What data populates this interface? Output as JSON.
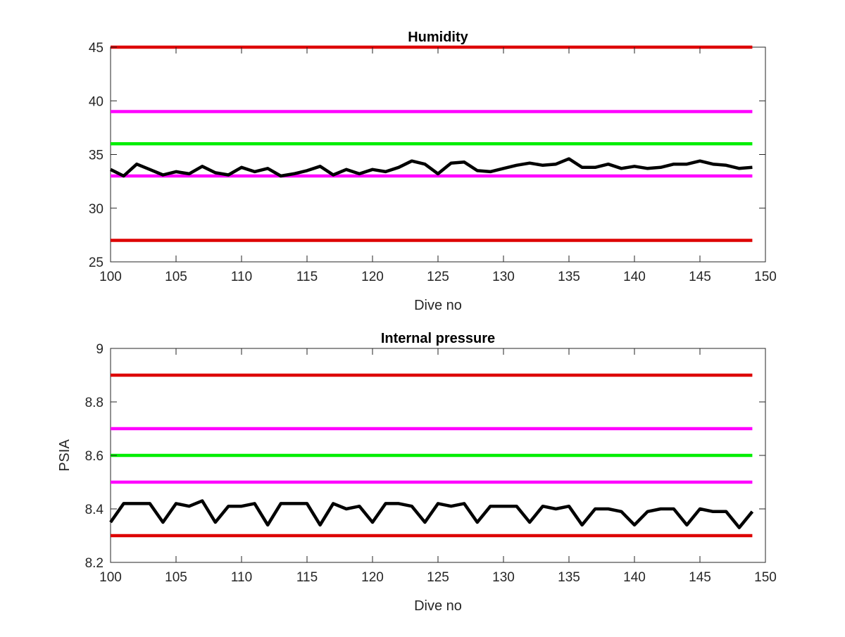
{
  "chart_data": [
    {
      "type": "line",
      "title": "Humidity",
      "xlabel": "Dive no",
      "ylabel": "",
      "xlim": [
        100,
        150
      ],
      "ylim": [
        25,
        45
      ],
      "xticks": [
        100,
        105,
        110,
        115,
        120,
        125,
        130,
        135,
        140,
        145,
        150
      ],
      "yticks": [
        25,
        30,
        35,
        40,
        45
      ],
      "grid": false,
      "limit_lines": [
        {
          "y": 45,
          "color": "#dd0000"
        },
        {
          "y": 39,
          "color": "#ff00ff"
        },
        {
          "y": 36,
          "color": "#00ee00"
        },
        {
          "y": 33,
          "color": "#ff00ff"
        },
        {
          "y": 27,
          "color": "#dd0000"
        }
      ],
      "series": [
        {
          "color": "#000000",
          "x": [
            100,
            101,
            102,
            103,
            104,
            105,
            106,
            107,
            108,
            109,
            110,
            111,
            112,
            113,
            114,
            115,
            116,
            117,
            118,
            119,
            120,
            121,
            122,
            123,
            124,
            125,
            126,
            127,
            128,
            129,
            130,
            131,
            132,
            133,
            134,
            135,
            136,
            137,
            138,
            139,
            140,
            141,
            142,
            143,
            144,
            145,
            146,
            147,
            148,
            149
          ],
          "y": [
            33.6,
            33.0,
            34.1,
            33.6,
            33.1,
            33.4,
            33.2,
            33.9,
            33.3,
            33.1,
            33.8,
            33.4,
            33.7,
            33.0,
            33.2,
            33.5,
            33.9,
            33.1,
            33.6,
            33.2,
            33.6,
            33.4,
            33.8,
            34.4,
            34.1,
            33.2,
            34.2,
            34.3,
            33.5,
            33.4,
            33.7,
            34.0,
            34.2,
            34.0,
            34.1,
            34.6,
            33.8,
            33.8,
            34.1,
            33.7,
            33.9,
            33.7,
            33.8,
            34.1,
            34.1,
            34.4,
            34.1,
            34.0,
            33.7,
            33.8
          ]
        }
      ]
    },
    {
      "type": "line",
      "title": "Internal pressure",
      "xlabel": "Dive no",
      "ylabel": "PSIA",
      "xlim": [
        100,
        150
      ],
      "ylim": [
        8.2,
        9
      ],
      "xticks": [
        100,
        105,
        110,
        115,
        120,
        125,
        130,
        135,
        140,
        145,
        150
      ],
      "yticks": [
        8.2,
        8.4,
        8.6,
        8.8,
        9
      ],
      "grid": false,
      "limit_lines": [
        {
          "y": 8.9,
          "color": "#dd0000"
        },
        {
          "y": 8.7,
          "color": "#ff00ff"
        },
        {
          "y": 8.6,
          "color": "#00ee00"
        },
        {
          "y": 8.5,
          "color": "#ff00ff"
        },
        {
          "y": 8.3,
          "color": "#dd0000"
        }
      ],
      "series": [
        {
          "color": "#000000",
          "x": [
            100,
            101,
            102,
            103,
            104,
            105,
            106,
            107,
            108,
            109,
            110,
            111,
            112,
            113,
            114,
            115,
            116,
            117,
            118,
            119,
            120,
            121,
            122,
            123,
            124,
            125,
            126,
            127,
            128,
            129,
            130,
            131,
            132,
            133,
            134,
            135,
            136,
            137,
            138,
            139,
            140,
            141,
            142,
            143,
            144,
            145,
            146,
            147,
            148,
            149
          ],
          "y": [
            8.35,
            8.42,
            8.42,
            8.42,
            8.35,
            8.42,
            8.41,
            8.43,
            8.35,
            8.41,
            8.41,
            8.42,
            8.34,
            8.42,
            8.42,
            8.42,
            8.34,
            8.42,
            8.4,
            8.41,
            8.35,
            8.42,
            8.42,
            8.41,
            8.35,
            8.42,
            8.41,
            8.42,
            8.35,
            8.41,
            8.41,
            8.41,
            8.35,
            8.41,
            8.4,
            8.41,
            8.34,
            8.4,
            8.4,
            8.39,
            8.34,
            8.39,
            8.4,
            8.4,
            8.34,
            8.4,
            8.39,
            8.39,
            8.33,
            8.39
          ]
        }
      ]
    }
  ]
}
